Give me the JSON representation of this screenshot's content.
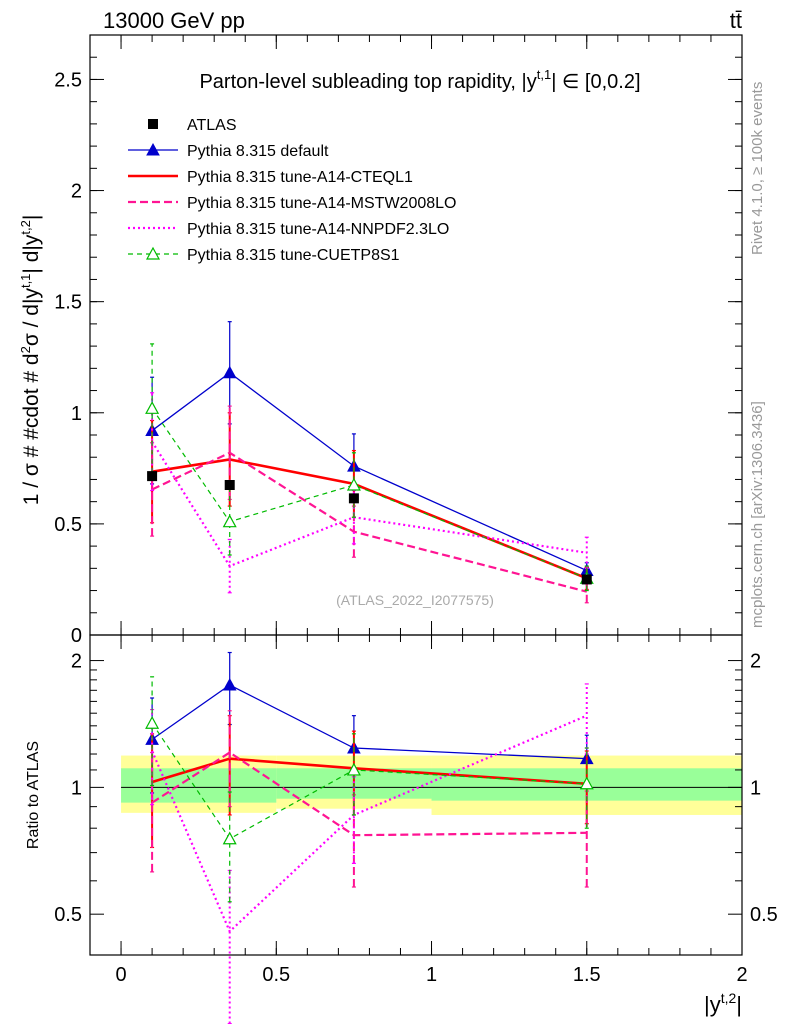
{
  "header": {
    "energy_label": "13000 GeV pp",
    "process_label": "tt̄"
  },
  "side_labels": {
    "rivet": "Rivet 4.1.0, ≥ 100k events",
    "mcplots": "mcplots.cern.ch [arXiv:1306.3436]"
  },
  "chart_data": [
    {
      "panel": "main",
      "type": "line",
      "title": "Parton-level subleading top rapidity, |y^t,1| ∈ [0,0.2]",
      "title_parts": {
        "prefix": "Parton-level subleading top rapidity, |y",
        "sup": "t,1",
        "suffix": "| ∈ [0,0.2]"
      },
      "xlabel": "|y^t,2|",
      "ylabel": "1 / σ # #cdot # d²σ / d|y^t,1| d|y^t,2|",
      "xlim": [
        -0.1,
        2.0
      ],
      "ylim": [
        0,
        2.7
      ],
      "yticks": [
        0,
        0.5,
        1,
        1.5,
        2,
        2.5
      ],
      "ytick_labels": [
        "0",
        "0.5",
        "1",
        "1.5",
        "2",
        "2.5"
      ],
      "xticks": [
        0,
        0.5,
        1,
        1.5,
        2
      ],
      "watermark": "(ATLAS_2022_I2077575)",
      "legend_position": "top-left",
      "data": {
        "name": "ATLAS",
        "x": [
          0.1,
          0.35,
          0.75,
          1.5
        ],
        "y": [
          0.715,
          0.675,
          0.615,
          0.25
        ],
        "err": [
          0.02,
          0.02,
          0.02,
          0.015
        ]
      },
      "series": [
        {
          "name": "Pythia 8.315 default",
          "color": "#0000cc",
          "style": "solid",
          "marker": "triangle-filled",
          "x": [
            0.1,
            0.35,
            0.75,
            1.5
          ],
          "y": [
            0.92,
            1.18,
            0.76,
            0.29
          ],
          "err": [
            0.24,
            0.23,
            0.145,
            0.035
          ]
        },
        {
          "name": "Pythia 8.315 tune-A14-CTEQL1",
          "color": "#ff0000",
          "style": "solid-thick",
          "marker": "none",
          "x": [
            0.1,
            0.35,
            0.75,
            1.5
          ],
          "y": [
            0.735,
            0.79,
            0.68,
            0.255
          ],
          "err": [
            0.23,
            0.21,
            0.15,
            0.05
          ]
        },
        {
          "name": "Pythia 8.315 tune-A14-MSTW2008LO",
          "color": "#ff1493",
          "style": "dashed",
          "marker": "none",
          "x": [
            0.1,
            0.35,
            0.75,
            1.5
          ],
          "y": [
            0.655,
            0.82,
            0.465,
            0.195
          ],
          "err": [
            0.21,
            0.21,
            0.115,
            0.05
          ]
        },
        {
          "name": "Pythia 8.315 tune-A14-NNPDF2.3LO",
          "color": "#ff00ff",
          "style": "dotted",
          "marker": "none",
          "x": [
            0.1,
            0.35,
            0.75,
            1.5
          ],
          "y": [
            0.87,
            0.31,
            0.53,
            0.37
          ],
          "err": [
            0.22,
            0.12,
            0.12,
            0.07
          ]
        },
        {
          "name": "Pythia 8.315 tune-CUETP8S1",
          "color": "#00bb00",
          "style": "dashed-thin",
          "marker": "triangle-open",
          "x": [
            0.1,
            0.35,
            0.75,
            1.5
          ],
          "y": [
            1.02,
            0.51,
            0.675,
            0.255
          ],
          "err": [
            0.29,
            0.15,
            0.145,
            0.055
          ]
        }
      ]
    },
    {
      "panel": "ratio",
      "type": "line",
      "ylabel": "Ratio to ATLAS",
      "xlabel": "|y^t,2|",
      "xlim": [
        -0.1,
        2.0
      ],
      "ylim": [
        0.4,
        2.3
      ],
      "yscale": "log",
      "yticks": [
        0.5,
        1,
        2
      ],
      "ytick_labels": [
        "0.5",
        "1",
        "2"
      ],
      "xticks": [
        0,
        0.5,
        1,
        1.5,
        2
      ],
      "xtick_labels": [
        "0",
        "0.5",
        "1",
        "1.5",
        "2"
      ],
      "bands": [
        {
          "x0": 0,
          "x1": 0.5,
          "green": [
            0.92,
            1.11
          ],
          "yellow": [
            0.87,
            1.19
          ]
        },
        {
          "x0": 0.5,
          "x1": 1.0,
          "green": [
            0.94,
            1.11
          ],
          "yellow": [
            0.89,
            1.19
          ]
        },
        {
          "x0": 1.0,
          "x1": 2.0,
          "green": [
            0.93,
            1.11
          ],
          "yellow": [
            0.86,
            1.19
          ]
        }
      ],
      "series": [
        {
          "name": "Pythia 8.315 default",
          "color": "#0000cc",
          "style": "solid",
          "marker": "triangle-filled",
          "x": [
            0.1,
            0.35,
            0.75,
            1.5
          ],
          "y": [
            1.3,
            1.75,
            1.24,
            1.17
          ],
          "err": [
            0.33,
            0.34,
            0.24,
            0.16
          ]
        },
        {
          "name": "Pythia 8.315 tune-A14-CTEQL1",
          "color": "#ff0000",
          "style": "solid-thick",
          "marker": "none",
          "x": [
            0.1,
            0.35,
            0.75,
            1.5
          ],
          "y": [
            1.03,
            1.17,
            1.11,
            1.02
          ],
          "err": [
            0.31,
            0.31,
            0.25,
            0.2
          ]
        },
        {
          "name": "Pythia 8.315 tune-A14-MSTW2008LO",
          "color": "#ff1493",
          "style": "dashed",
          "marker": "none",
          "x": [
            0.1,
            0.35,
            0.75,
            1.5
          ],
          "y": [
            0.92,
            1.21,
            0.77,
            0.78
          ],
          "err": [
            0.29,
            0.31,
            0.19,
            0.2
          ]
        },
        {
          "name": "Pythia 8.315 tune-A14-NNPDF2.3LO",
          "color": "#ff00ff",
          "style": "dotted",
          "marker": "none",
          "x": [
            0.1,
            0.35,
            0.75,
            1.5
          ],
          "y": [
            1.22,
            0.455,
            0.86,
            1.48
          ],
          "err": [
            0.31,
            0.18,
            0.2,
            0.28
          ]
        },
        {
          "name": "Pythia 8.315 tune-CUETP8S1",
          "color": "#00bb00",
          "style": "dashed-thin",
          "marker": "triangle-open",
          "x": [
            0.1,
            0.35,
            0.75,
            1.5
          ],
          "y": [
            1.42,
            0.755,
            1.1,
            1.02
          ],
          "err": [
            0.41,
            0.22,
            0.24,
            0.22
          ]
        }
      ]
    }
  ]
}
